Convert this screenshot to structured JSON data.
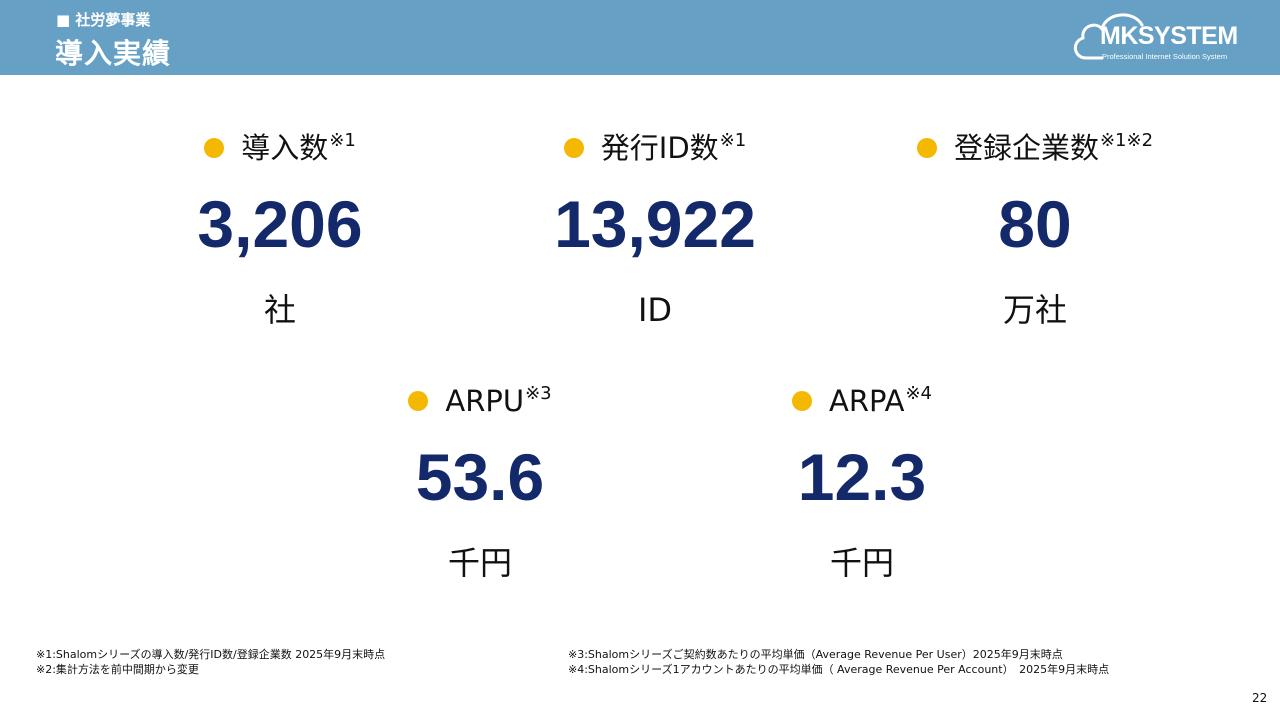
{
  "header": {
    "section": "■ 社労夢事業",
    "title": "導入実績",
    "logo": {
      "brand": "MKSYSTEM",
      "tagline": "Professional Internet Solution System",
      "icon": "cloud-icon"
    }
  },
  "metrics": [
    {
      "label": "導入数",
      "note": "※1",
      "value": "3,206",
      "unit": "社"
    },
    {
      "label": "発行ID数",
      "note": "※1",
      "value": "13,922",
      "unit": "ID"
    },
    {
      "label": "登録企業数",
      "note": "※1※2",
      "value": "80",
      "unit": "万社"
    },
    {
      "label": "ARPU",
      "note": "※3",
      "value": "53.6",
      "unit": "千円"
    },
    {
      "label": "ARPA",
      "note": "※4",
      "value": "12.3",
      "unit": "千円"
    }
  ],
  "footnotes": {
    "left": [
      "※1:Shalomシリーズの導入数/発行ID数/登録企業数 2025年9月末時点",
      "※2:集計方法を前中間期から変更"
    ],
    "right": [
      "※3:Shalomシリーズご契約数あたりの平均単価（Average Revenue Per User）2025年9月末時点",
      "※4:Shalomシリーズ1アカウントあたりの平均単価（ Average Revenue Per Account）　2025年9月末時点"
    ]
  },
  "page_number": "22",
  "colors": {
    "header_bg": "#66a0c4",
    "value_text": "#13296a",
    "bullet": "#f5b800"
  }
}
